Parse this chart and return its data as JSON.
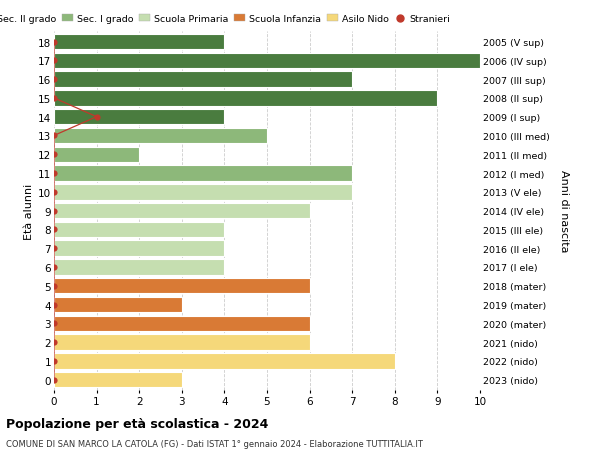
{
  "ages": [
    18,
    17,
    16,
    15,
    14,
    13,
    12,
    11,
    10,
    9,
    8,
    7,
    6,
    5,
    4,
    3,
    2,
    1,
    0
  ],
  "right_labels": [
    "2005 (V sup)",
    "2006 (IV sup)",
    "2007 (III sup)",
    "2008 (II sup)",
    "2009 (I sup)",
    "2010 (III med)",
    "2011 (II med)",
    "2012 (I med)",
    "2013 (V ele)",
    "2014 (IV ele)",
    "2015 (III ele)",
    "2016 (II ele)",
    "2017 (I ele)",
    "2018 (mater)",
    "2019 (mater)",
    "2020 (mater)",
    "2021 (nido)",
    "2022 (nido)",
    "2023 (nido)"
  ],
  "bar_values": [
    4,
    10,
    7,
    9,
    4,
    5,
    2,
    7,
    7,
    6,
    4,
    4,
    4,
    6,
    3,
    6,
    6,
    8,
    3
  ],
  "bar_colors": [
    "#4a7c3f",
    "#4a7c3f",
    "#4a7c3f",
    "#4a7c3f",
    "#4a7c3f",
    "#8db87a",
    "#8db87a",
    "#8db87a",
    "#c5deb0",
    "#c5deb0",
    "#c5deb0",
    "#c5deb0",
    "#c5deb0",
    "#d97a35",
    "#d97a35",
    "#d97a35",
    "#f5d87a",
    "#f5d87a",
    "#f5d87a"
  ],
  "stranieri_values": [
    0,
    0,
    0,
    0,
    1,
    0,
    0,
    0,
    0,
    0,
    0,
    0,
    0,
    0,
    0,
    0,
    0,
    0,
    0
  ],
  "legend_labels": [
    "Sec. II grado",
    "Sec. I grado",
    "Scuola Primaria",
    "Scuola Infanzia",
    "Asilo Nido",
    "Stranieri"
  ],
  "legend_colors": [
    "#4a7c3f",
    "#8db87a",
    "#c5deb0",
    "#d97a35",
    "#f5d87a",
    "#c0392b"
  ],
  "ylabel_left": "Età alunni",
  "ylabel_right": "Anni di nascita",
  "xlim": [
    0,
    10
  ],
  "xticks": [
    0,
    1,
    2,
    3,
    4,
    5,
    6,
    7,
    8,
    9,
    10
  ],
  "title": "Popolazione per età scolastica - 2024",
  "subtitle": "COMUNE DI SAN MARCO LA CATOLA (FG) - Dati ISTAT 1° gennaio 2024 - Elaborazione TUTTITALIA.IT",
  "bg_color": "#ffffff",
  "grid_color": "#cccccc",
  "bar_height": 0.82
}
